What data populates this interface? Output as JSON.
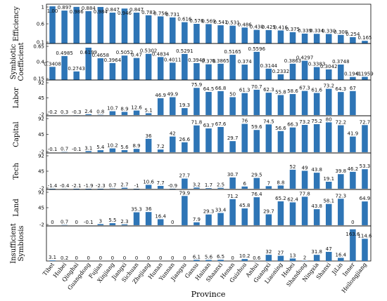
{
  "chart_data": {
    "type": "bar",
    "xlabel": "Province",
    "categories": [
      "Tibet",
      "Hubei",
      "Qinghai",
      "Guangdong",
      "Fujian",
      "Xinjiang",
      "Jiangxi",
      "Sichuan",
      "Zhejiang",
      "Hunan",
      "Yunnan",
      "Jiangsu",
      "Gansu",
      "Hainan",
      "Shaanxi",
      "Henan",
      "Guizhou",
      "Anhui",
      "Guangxi",
      "Liaoning",
      "Hebei",
      "Shandong",
      "Ningxia",
      "Shanxi",
      "JiLin",
      "Inner",
      "Heilongjiang"
    ],
    "bar_color": "#2e75b6",
    "panels": [
      {
        "ylabel": "Efficiency",
        "ylim": [
          0.1,
          1.0
        ],
        "yticks": [
          "1",
          "0.6",
          "0.1"
        ],
        "values": [
          1.0,
          0.897,
          0.986,
          0.884,
          0.984,
          0.847,
          0.946,
          0.847,
          0.783,
          0.756,
          0.731,
          0.616,
          0.576,
          0.569,
          0.541,
          0.531,
          0.486,
          0.43,
          0.425,
          0.416,
          0.375,
          0.339,
          0.334,
          0.33,
          0.308,
          0.254,
          0.165
        ],
        "labels": [
          "1.00",
          "0.897",
          "0.986",
          "0.884",
          "0.984",
          "0.847",
          "0.946",
          "0.847",
          "0.783",
          "0.756",
          "0.731",
          "0.616",
          "0.576",
          "0.569",
          "0.541",
          "0.531",
          "0.486",
          "0.430",
          "0.425",
          "0.416",
          "0.375",
          "0.339",
          "0.334",
          "0.330",
          "0.308",
          "0.254",
          "0.165"
        ]
      },
      {
        "ylabel": "Symbiotic Coefficient",
        "ylim": [
          0.15,
          0.65
        ],
        "yticks": [
          "0.65",
          "0.4",
          "0.15"
        ],
        "values": [
          0.3408,
          0.4985,
          0.2743,
          0.6199,
          0.4658,
          0.3964,
          0.5052,
          0.47,
          0.5302,
          0.4834,
          0.4011,
          0.5291,
          0.3949,
          0.378,
          0.3865,
          0.5165,
          0.374,
          0.5596,
          0.3144,
          0.2332,
          0.3863,
          0.4297,
          0.3383,
          0.3042,
          0.3748,
          0.1941,
          0.1959
        ],
        "labels": [
          "0.3408",
          "0.4985",
          "0.2743",
          "0.6199",
          "0.4658",
          "0.3964",
          "0.5052",
          "0.47",
          "0.5302",
          "0.4834",
          "0.4011",
          "0.5291",
          "0.3949",
          "0.378",
          "0.3865",
          "0.5165",
          "0.374",
          "0.5596",
          "0.3144",
          "0.2332",
          "0.3863",
          "0.4297",
          "0.3383",
          "0.3042",
          "0.3748",
          "0.1941",
          "0.1959"
        ]
      },
      {
        "ylabel": "Labor",
        "ylim": [
          -2,
          92
        ],
        "yticks": [
          "92",
          "45",
          "-2"
        ],
        "values": [
          -0.2,
          0.3,
          -0.3,
          2.4,
          0.8,
          10.7,
          8.9,
          12.6,
          5.1,
          46.9,
          49.9,
          19.3,
          75.9,
          64.5,
          66.8,
          50,
          61.3,
          70.7,
          62.3,
          55.8,
          58.6,
          67.3,
          61.6,
          73.2,
          64.3,
          67,
          0
        ],
        "labels": [
          "-0.2",
          "0.3",
          "-0.3",
          "2.4",
          "0.8",
          "10.7",
          "8.9",
          "12.6",
          "5.1",
          "46.9",
          "49.9",
          "19.3",
          "75.9",
          "64.5",
          "66.8",
          "50",
          "61.3",
          "70.7",
          "62.3",
          "55.8",
          "58.6",
          "67.3",
          "61.6",
          "73.2",
          "64.3",
          "67",
          ""
        ]
      },
      {
        "ylabel": "Capital",
        "ylim": [
          -2,
          92
        ],
        "yticks": [
          "92",
          "45",
          "-2"
        ],
        "values": [
          -0.1,
          0.7,
          -0.1,
          3.1,
          5.4,
          10.2,
          5.6,
          8.9,
          36,
          7.2,
          42,
          26.6,
          71.8,
          63.7,
          67.6,
          29.7,
          76,
          59.6,
          74.5,
          56.6,
          66.3,
          73.2,
          75.2,
          80,
          72.2,
          41.9,
          72.7
        ],
        "labels": [
          "-0.1",
          "0.7",
          "-0.1",
          "3.1",
          "5.4",
          "10.2",
          "5.6",
          "8.9",
          "36",
          "7.2",
          "42",
          "26.6",
          "71.8",
          "63.7",
          "67.6",
          "29.7",
          "76",
          "59.6",
          "74.5",
          "56.6",
          "66.3",
          "73.2",
          "75.2",
          "80",
          "72.2",
          "41.9",
          "72.7"
        ]
      },
      {
        "ylabel": "Tech",
        "ylim": [
          -2,
          92
        ],
        "yticks": [
          "92",
          "45",
          "-2"
        ],
        "values": [
          -1.4,
          -0.4,
          -2.1,
          -1.9,
          -2.3,
          0.7,
          2.7,
          -1,
          10.6,
          7.7,
          -0.9,
          27.7,
          3.2,
          1.7,
          2.5,
          30.7,
          6,
          29.5,
          7,
          8.8,
          52,
          49,
          43.8,
          19.1,
          39.8,
          46.2,
          53.3
        ],
        "labels": [
          "-1.4",
          "-0.4",
          "-2.1",
          "-1.9",
          "-2.3",
          "0.7",
          "2.7",
          "-1",
          "10.6",
          "7.7",
          "-0.9",
          "27.7",
          "3.2",
          "1.7",
          "2.5",
          "30.7",
          "6",
          "29.5",
          "7",
          "8.8",
          "52",
          "49",
          "43.8",
          "19.1",
          "39.8",
          "46.2",
          "53.3"
        ]
      },
      {
        "ylabel": "Land",
        "ylim": [
          -2,
          92
        ],
        "yticks": [
          "92",
          "45",
          "-2"
        ],
        "values": [
          0,
          0.7,
          0,
          -0.1,
          3,
          5.5,
          2.3,
          35.3,
          36,
          16.4,
          0,
          79.9,
          7.9,
          29.3,
          33.4,
          71.2,
          45.8,
          76.4,
          29.7,
          65.2,
          62.4,
          77.8,
          43.8,
          58.1,
          72.3,
          0,
          64.9
        ],
        "labels": [
          "0",
          "0.7",
          "0",
          "-0.1",
          "3",
          "5.5",
          "2.3",
          "35.3",
          "36",
          "16.4",
          "0",
          "79.9",
          "7.9",
          "29.3",
          "33.4",
          "71.2",
          "45.8",
          "76.4",
          "29.7",
          "65.2",
          "62.4",
          "77.8",
          "43.8",
          "58.1",
          "72.3",
          "0",
          "64.9"
        ]
      },
      {
        "ylabel": "Insufficient Symbiosis",
        "ylim": [
          0,
          170
        ],
        "yticks": [],
        "values": [
          3.1,
          0.2,
          0,
          0,
          0,
          0,
          0,
          0,
          0,
          0,
          0,
          0,
          6.1,
          5.6,
          6.5,
          0,
          10.2,
          0.6,
          32,
          27,
          13,
          2,
          31.8,
          47,
          16.4,
          163.6,
          114.6
        ],
        "labels": [
          "3.1",
          "0.2",
          "0",
          "0",
          "0",
          "0",
          "0",
          "0",
          "0",
          "0",
          "0",
          "0",
          "6.1",
          "5.6",
          "6.5",
          "0",
          "10.2",
          "0.6",
          "32",
          "27",
          "13",
          "2",
          "31.8",
          "47",
          "16.4",
          "163.6",
          "114.6"
        ]
      }
    ]
  }
}
